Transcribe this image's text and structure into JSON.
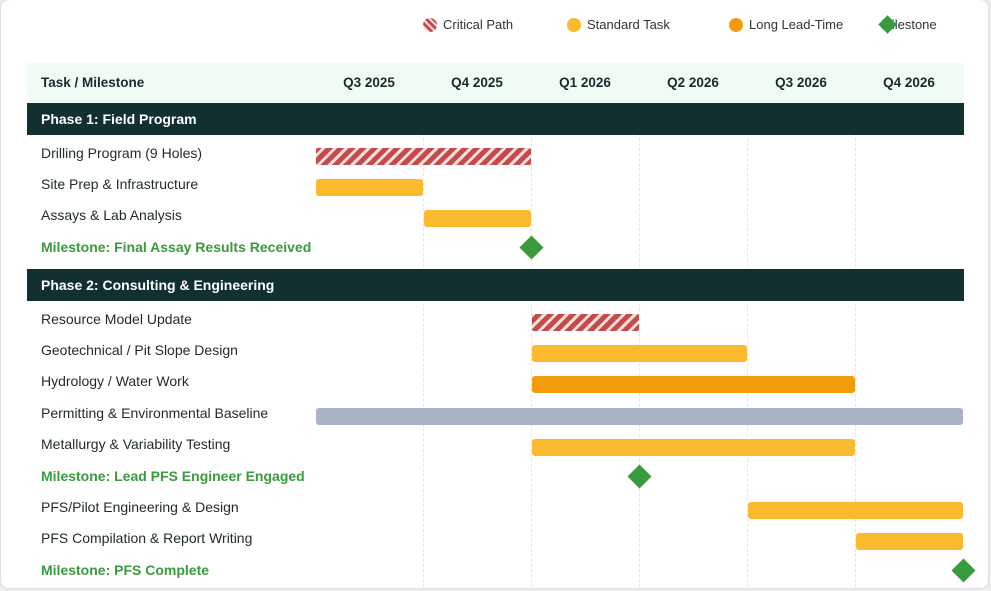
{
  "chart_data": {
    "type": "gantt",
    "legend": [
      {
        "label": "Critical Path",
        "kind": "critical",
        "color": "#c64a4a"
      },
      {
        "label": "Standard Task",
        "kind": "standard",
        "color": "#fbb92e"
      },
      {
        "label": "Long Lead-Time",
        "kind": "long",
        "color": "#f29c0c"
      },
      {
        "label": "Milestone",
        "kind": "milestone",
        "color": "#3a9a3e"
      }
    ],
    "task_column_label": "Task / Milestone",
    "periods": [
      "Q3 2025",
      "Q4 2025",
      "Q1 2026",
      "Q2 2026",
      "Q3 2026",
      "Q4 2026"
    ],
    "phases": [
      {
        "name": "Phase 1: Field Program",
        "tasks": [
          {
            "name": "Drilling Program (9 Holes)",
            "kind": "critical",
            "start": 0,
            "end": 2
          },
          {
            "name": "Site Prep & Infrastructure",
            "kind": "standard",
            "start": 0,
            "end": 1
          },
          {
            "name": "Assays & Lab Analysis",
            "kind": "standard",
            "start": 1,
            "end": 2
          },
          {
            "name": "Milestone: Final Assay Results Received",
            "kind": "milestone",
            "at": 2
          }
        ]
      },
      {
        "name": "Phase 2: Consulting & Engineering",
        "tasks": [
          {
            "name": "Resource Model Update",
            "kind": "critical",
            "start": 2,
            "end": 3
          },
          {
            "name": "Geotechnical / Pit Slope Design",
            "kind": "standard",
            "start": 2,
            "end": 4
          },
          {
            "name": "Hydrology / Water Work",
            "kind": "long",
            "start": 2,
            "end": 5
          },
          {
            "name": "Permitting & Environmental Baseline",
            "kind": "neutral",
            "start": 0,
            "end": 6
          },
          {
            "name": "Metallurgy & Variability Testing",
            "kind": "standard",
            "start": 2,
            "end": 5
          },
          {
            "name": "Milestone: Lead PFS Engineer Engaged",
            "kind": "milestone",
            "at": 3
          },
          {
            "name": "PFS/Pilot Engineering & Design",
            "kind": "standard",
            "start": 4,
            "end": 6
          },
          {
            "name": "PFS Compilation & Report Writing",
            "kind": "standard",
            "start": 5,
            "end": 6
          },
          {
            "name": "Milestone: PFS Complete",
            "kind": "milestone",
            "at": 6
          }
        ]
      }
    ]
  }
}
